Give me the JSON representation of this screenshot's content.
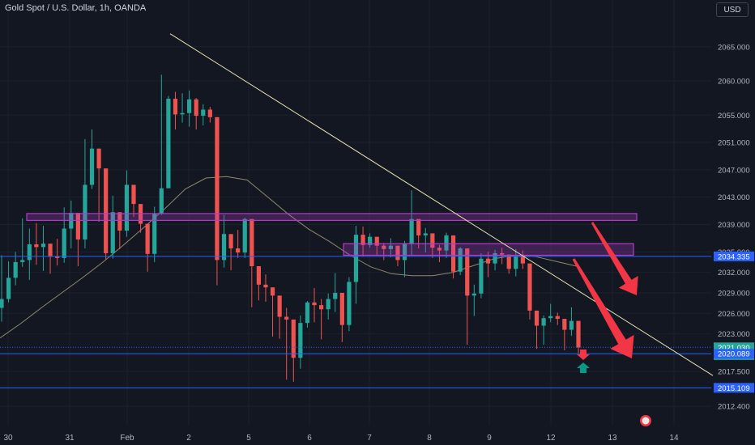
{
  "header": {
    "title": "Gold Spot / U.S. Dollar, 1h, OANDA",
    "currency": "USD"
  },
  "colors": {
    "background": "#131722",
    "up": "#26a69a",
    "down": "#ef5350",
    "trendline": "#e8e3b0",
    "ma": "#8f8a6a",
    "zone": "#b13cc9",
    "hline": "#2962ff",
    "arrow": "#f23645",
    "axis_text": "#b2b5be"
  },
  "chart_data": {
    "type": "candlestick",
    "title": "Gold Spot / U.S. Dollar, 1h, OANDA",
    "y_ticks": [
      "2065.000",
      "2060.000",
      "2055.000",
      "2051.000",
      "2047.000",
      "2043.000",
      "2039.000",
      "2035.000",
      "2032.000",
      "2029.000",
      "2026.000",
      "2023.000",
      "2017.500",
      "2012.400"
    ],
    "y_tick_values": [
      2065.0,
      2060.0,
      2055.0,
      2051.0,
      2047.0,
      2043.0,
      2039.0,
      2035.0,
      2032.0,
      2029.0,
      2026.0,
      2023.0,
      2017.5,
      2012.4
    ],
    "x_ticks": [
      "30",
      "31",
      "Feb",
      "2",
      "5",
      "6",
      "7",
      "8",
      "9",
      "12",
      "13",
      "14"
    ],
    "ylim": [
      2011.0,
      2072.0
    ],
    "price_labels": [
      {
        "text": "2034.335",
        "value": 2034.335,
        "kind": "level"
      },
      {
        "text": "2021.030",
        "value": 2021.03,
        "kind": "last"
      },
      {
        "text": "27:07",
        "value": 2019.9,
        "kind": "countdown"
      },
      {
        "text": "2020.089",
        "value": 2020.089,
        "kind": "level"
      },
      {
        "text": "2015.109",
        "value": 2015.109,
        "kind": "level"
      }
    ],
    "horizontal_levels": [
      2034.335,
      2020.089,
      2015.109
    ],
    "zones": [
      {
        "from": 2039.6,
        "to": 2040.6
      },
      {
        "from": 2034.5,
        "to": 2036.2
      }
    ],
    "trendline": {
      "from_price": 2066.9,
      "to_price": 2016.9
    },
    "moving_average": [
      2022.4,
      2024.5,
      2026.8,
      2029.0,
      2031.2,
      2033.5,
      2036.0,
      2038.6,
      2041.3,
      2044.2,
      2045.8,
      2046.0,
      2045.5,
      2043.0,
      2040.5,
      2038.3,
      2036.5,
      2034.5,
      2032.8,
      2031.8,
      2031.5,
      2031.5,
      2032.0,
      2033.0,
      2034.0,
      2034.5,
      2034.3,
      2033.6,
      2032.9
    ],
    "closes": [
      2028.1,
      2031.2,
      2033.5,
      2033.8,
      2036.1,
      2035.7,
      2036.2,
      2034.3,
      2034.1,
      2038.4,
      2040.7,
      2036.8,
      2044.8,
      2050.1,
      2047.2,
      2034.8,
      2040.8,
      2038.1,
      2044.8,
      2042.0,
      2039.1,
      2034.7,
      2040.6,
      2044.3,
      2057.4,
      2055.1,
      2055.3,
      2057.3,
      2054.9,
      2055.8,
      2054.7,
      2033.8,
      2037.6,
      2035.5,
      2034.9,
      2039.8,
      2032.9,
      2030.2,
      2029.8,
      2028.6,
      2025.5,
      2025.1,
      2019.5,
      2024.6,
      2027.6,
      2027.2,
      2026.6,
      2028.1,
      2029.0,
      2024.3,
      2030.6,
      2037.5,
      2036.0,
      2037.2,
      2035.9,
      2035.4,
      2035.9,
      2033.8,
      2036.2,
      2039.8,
      2037.4,
      2037.7,
      2035.6,
      2035.2,
      2037.4,
      2032.1,
      2035.5,
      2028.6,
      2028.9,
      2034.0,
      2033.3,
      2034.8,
      2034.6,
      2032.5,
      2034.4,
      2033.3,
      2026.4,
      2024.2,
      2025.3,
      2025.6,
      2025.2,
      2023.6,
      2024.9,
      2021.0
    ],
    "highs": [
      2034.5,
      2033.6,
      2035.0,
      2039.9,
      2038.4,
      2039.2,
      2038.8,
      2035.9,
      2036.9,
      2041.5,
      2042.5,
      2037.4,
      2051.5,
      2052.9,
      2047.8,
      2035.9,
      2043.2,
      2039.5,
      2046.9,
      2043.6,
      2039.9,
      2036.0,
      2041.6,
      2060.9,
      2057.8,
      2058.4,
      2058.2,
      2058.6,
      2057.5,
      2056.6,
      2056.2,
      2035.1,
      2040.4,
      2035.5,
      2038.2,
      2040.0,
      2033.7,
      2031.5,
      2031.7,
      2028.9,
      2026.5,
      2026.8,
      2020.3,
      2025.7,
      2027.8,
      2029.7,
      2028.1,
      2028.9,
      2031.9,
      2028.2,
      2031.3,
      2038.8,
      2038.7,
      2037.7,
      2036.6,
      2036.3,
      2037.0,
      2034.2,
      2036.6,
      2044.0,
      2038.2,
      2038.5,
      2036.6,
      2036.0,
      2037.8,
      2034.1,
      2035.7,
      2029.9,
      2030.2,
      2034.8,
      2035.0,
      2035.3,
      2035.6,
      2034.1,
      2035.4,
      2035.2,
      2029.5,
      2025.4,
      2025.7,
      2027.4,
      2026.1,
      2025.2,
      2026.9,
      2021.6
    ],
    "lows": [
      2024.8,
      2027.6,
      2030.1,
      2032.8,
      2030.9,
      2033.1,
      2032.2,
      2031.8,
      2033.0,
      2033.4,
      2035.5,
      2032.9,
      2035.5,
      2044.2,
      2039.4,
      2033.9,
      2034.0,
      2035.4,
      2037.2,
      2040.1,
      2037.8,
      2032.1,
      2033.5,
      2040.4,
      2050.7,
      2052.9,
      2053.9,
      2053.3,
      2052.9,
      2053.5,
      2053.9,
      2030.1,
      2032.7,
      2032.3,
      2034.1,
      2034.1,
      2026.9,
      2027.9,
      2027.7,
      2022.6,
      2022.3,
      2016.3,
      2016.0,
      2017.9,
      2023.9,
      2024.7,
      2022.2,
      2025.1,
      2026.2,
      2021.8,
      2023.4,
      2027.4,
      2034.3,
      2035.6,
      2034.5,
      2033.8,
      2034.2,
      2032.9,
      2031.3,
      2034.5,
      2035.5,
      2034.9,
      2034.1,
      2033.5,
      2034.1,
      2031.1,
      2031.6,
      2021.4,
      2025.6,
      2028.2,
      2031.3,
      2032.3,
      2033.2,
      2031.8,
      2031.4,
      2032.5,
      2025.1,
      2020.8,
      2021.4,
      2024.7,
      2024.3,
      2020.6,
      2022.7,
      2020.1
    ]
  }
}
